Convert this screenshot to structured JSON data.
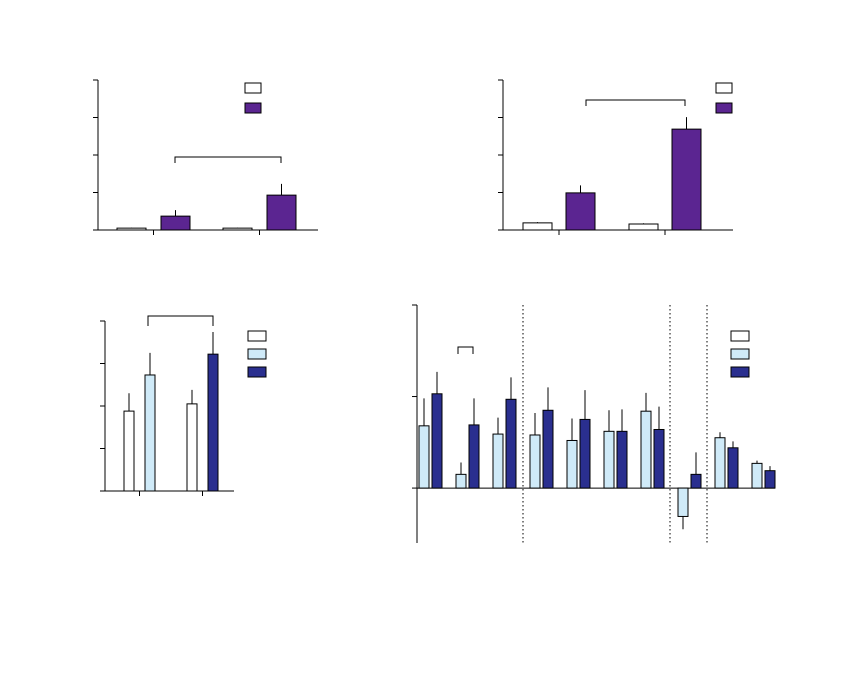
{
  "chart_data": [
    {
      "type": "bar",
      "categories": [
        null,
        null
      ],
      "ylim": [
        0,
        4
      ],
      "yticks": [
        0,
        1,
        2,
        3,
        4
      ],
      "series": [
        {
          "color": "#ffffff",
          "values": [
            0.05,
            0.05
          ],
          "errors": [
            0.01,
            0.01
          ]
        },
        {
          "color": "#5b2591",
          "values": [
            0.37,
            0.93
          ],
          "errors": [
            0.16,
            0.3
          ]
        }
      ],
      "legend_colors": [
        "#ffffff",
        "#5b2591"
      ]
    },
    {
      "type": "bar",
      "categories": [
        null,
        null
      ],
      "ylim": [
        0,
        4
      ],
      "yticks": [
        0,
        1,
        2,
        3,
        4
      ],
      "series": [
        {
          "color": "#ffffff",
          "values": [
            0.19,
            0.16
          ],
          "errors": [
            0.02,
            0.02
          ]
        },
        {
          "color": "#5b2591",
          "values": [
            0.99,
            2.69
          ],
          "errors": [
            0.2,
            0.32
          ]
        }
      ],
      "legend_colors": [
        "#ffffff",
        "#5b2591"
      ]
    },
    {
      "type": "bar",
      "categories": [
        null,
        null
      ],
      "ylim": [
        0,
        4
      ],
      "yticks": [
        0,
        1,
        2,
        3,
        4
      ],
      "series": [
        {
          "color": "#ffffff",
          "values": [
            1.88,
            2.05
          ],
          "errors": [
            0.42,
            0.33
          ]
        },
        {
          "color": "#cfeaf8",
          "values": [
            2.73,
            null
          ],
          "errors": [
            0.52,
            null
          ]
        },
        {
          "color": "#2a2f8f",
          "values": [
            null,
            3.22
          ],
          "errors": [
            null,
            0.52
          ]
        }
      ],
      "legend_colors": [
        "#ffffff",
        "#cfeaf8",
        "#2a2f8f"
      ]
    },
    {
      "type": "bar",
      "categories": [
        null,
        null,
        null,
        null,
        null,
        null,
        null,
        null,
        null,
        null
      ],
      "ylim": [
        -0.6,
        2
      ],
      "yticks": [
        0,
        1,
        2
      ],
      "series": [
        {
          "color": "#cfeaf8",
          "values": [
            0.68,
            0.15,
            0.59,
            0.58,
            0.52,
            0.62,
            0.84,
            -0.31,
            0.55,
            0.27
          ],
          "errors": [
            0.3,
            0.13,
            0.18,
            0.24,
            0.24,
            0.23,
            0.2,
            0.14,
            0.06,
            0.03
          ]
        },
        {
          "color": "#2a2f8f",
          "values": [
            1.03,
            0.69,
            0.97,
            0.85,
            0.75,
            0.62,
            0.64,
            0.15,
            0.44,
            0.19
          ],
          "errors": [
            0.24,
            0.29,
            0.24,
            0.25,
            0.32,
            0.24,
            0.25,
            0.24,
            0.07,
            0.05
          ]
        }
      ],
      "legend_colors": [
        "#ffffff",
        "#cfeaf8",
        "#2a2f8f"
      ]
    }
  ]
}
